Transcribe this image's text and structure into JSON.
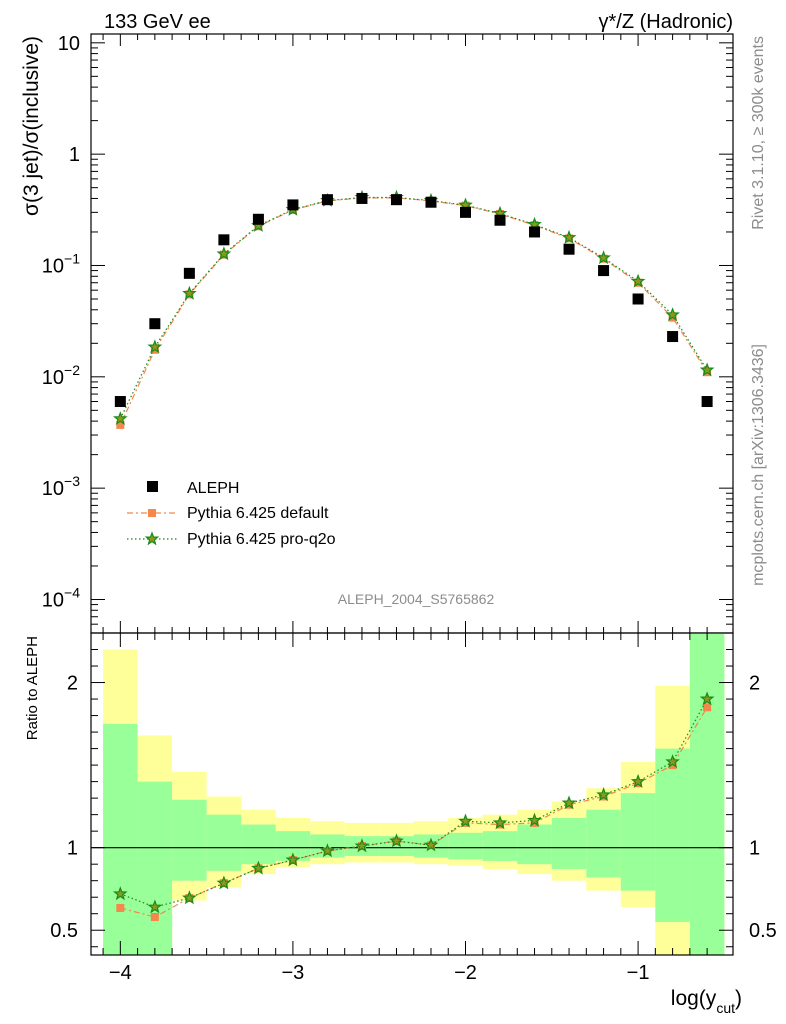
{
  "header": {
    "left": "133 GeV ee",
    "right": "γ*/Z (Hadronic)"
  },
  "side_labels": {
    "top": "Rivet 3.1.10, ≥ 300k events",
    "bottom": "mcplots.cern.ch [arXiv:1306.3436]"
  },
  "watermark": "ALEPH_2004_S5765862",
  "colors": {
    "data": "#000000",
    "pythia_default": "#f4874b",
    "pythia_proq2o": "#1a8a1a",
    "band_inner": "#99ff99",
    "band_outer": "#ffff99"
  },
  "chart_data": [
    {
      "type": "scatter",
      "ylabel": "σ(3 jet)/σ(inclusive)",
      "yscale": "log",
      "ylim": [
        5e-05,
        12
      ],
      "xlim": [
        -4.17,
        -0.45
      ],
      "y_ticks": [
        {
          "value": 10,
          "label": "10"
        },
        {
          "value": 1,
          "label": "1"
        },
        {
          "value": 0.1,
          "label": "10^-1",
          "base": "10",
          "exp": "−1"
        },
        {
          "value": 0.01,
          "label": "10^-2",
          "base": "10",
          "exp": "−2"
        },
        {
          "value": 0.001,
          "label": "10^-3",
          "base": "10",
          "exp": "−3"
        },
        {
          "value": 0.0001,
          "label": "10^-4",
          "base": "10",
          "exp": "−4"
        }
      ],
      "x": [
        -4.0,
        -3.8,
        -3.6,
        -3.4,
        -3.2,
        -3.0,
        -2.8,
        -2.6,
        -2.4,
        -2.2,
        -2.0,
        -1.8,
        -1.6,
        -1.4,
        -1.2,
        -1.0,
        -0.8,
        -0.6
      ],
      "series": [
        {
          "name": "ALEPH",
          "values": [
            0.006,
            0.03,
            0.085,
            0.17,
            0.26,
            0.35,
            0.39,
            0.4,
            0.39,
            0.37,
            0.3,
            0.255,
            0.2,
            0.14,
            0.09,
            0.05,
            0.023,
            0.006
          ]
        },
        {
          "name": "Pythia 6.425 default",
          "values": [
            0.0037,
            0.0175,
            0.055,
            0.125,
            0.225,
            0.315,
            0.38,
            0.405,
            0.405,
            0.38,
            0.345,
            0.29,
            0.23,
            0.175,
            0.115,
            0.07,
            0.034,
            0.011
          ]
        },
        {
          "name": "Pythia 6.425 pro-q2o",
          "values": [
            0.0042,
            0.0185,
            0.056,
            0.127,
            0.228,
            0.318,
            0.383,
            0.408,
            0.408,
            0.383,
            0.348,
            0.293,
            0.233,
            0.178,
            0.117,
            0.072,
            0.036,
            0.0115
          ]
        }
      ],
      "legend_position": "lower-left"
    },
    {
      "type": "line",
      "ylabel": "Ratio to ALEPH",
      "xlabel": "log(y_cut)",
      "xlabel_main": "log(y",
      "xlabel_sub": "cut",
      "xlabel_close": ")",
      "ylim": [
        0.35,
        2.3
      ],
      "xlim": [
        -4.17,
        -0.45
      ],
      "y_ticks": [
        {
          "value": 0.5,
          "label": "0.5"
        },
        {
          "value": 1,
          "label": "1"
        },
        {
          "value": 2,
          "label": "2"
        }
      ],
      "x_ticks": [
        {
          "value": -4,
          "label": "−4"
        },
        {
          "value": -3,
          "label": "−3"
        },
        {
          "value": -2,
          "label": "−2"
        },
        {
          "value": -1,
          "label": "−1"
        }
      ],
      "band_bins": [
        -4.1,
        -3.9,
        -3.7,
        -3.5,
        -3.3,
        -3.1,
        -2.9,
        -2.7,
        -2.5,
        -2.3,
        -2.1,
        -1.9,
        -1.7,
        -1.5,
        -1.3,
        -1.1,
        -0.9,
        -0.7,
        -0.5
      ],
      "band_outer": [
        [
          0.35,
          2.2
        ],
        [
          0.35,
          1.68
        ],
        [
          0.68,
          1.46
        ],
        [
          0.76,
          1.31
        ],
        [
          0.84,
          1.23
        ],
        [
          0.88,
          1.18
        ],
        [
          0.9,
          1.16
        ],
        [
          0.91,
          1.15
        ],
        [
          0.91,
          1.15
        ],
        [
          0.9,
          1.16
        ],
        [
          0.89,
          1.18
        ],
        [
          0.87,
          1.2
        ],
        [
          0.84,
          1.23
        ],
        [
          0.8,
          1.28
        ],
        [
          0.74,
          1.36
        ],
        [
          0.64,
          1.52
        ],
        [
          0.35,
          1.98
        ],
        [
          0.35,
          2.3
        ]
      ],
      "band_inner": [
        [
          0.35,
          1.75
        ],
        [
          0.35,
          1.4
        ],
        [
          0.8,
          1.29
        ],
        [
          0.86,
          1.2
        ],
        [
          0.9,
          1.14
        ],
        [
          0.92,
          1.1
        ],
        [
          0.94,
          1.08
        ],
        [
          0.95,
          1.07
        ],
        [
          0.95,
          1.07
        ],
        [
          0.94,
          1.08
        ],
        [
          0.93,
          1.09
        ],
        [
          0.92,
          1.1
        ],
        [
          0.9,
          1.14
        ],
        [
          0.87,
          1.18
        ],
        [
          0.82,
          1.23
        ],
        [
          0.74,
          1.33
        ],
        [
          0.55,
          1.6
        ],
        [
          0.35,
          2.3
        ]
      ],
      "series": [
        {
          "name": "Pythia 6.425 default",
          "values": [
            0.635,
            0.58,
            0.695,
            0.785,
            0.875,
            0.925,
            0.98,
            1.01,
            1.04,
            1.015,
            1.15,
            1.14,
            1.15,
            1.26,
            1.31,
            1.39,
            1.5,
            1.85
          ]
        },
        {
          "name": "Pythia 6.425 pro-q2o",
          "values": [
            0.72,
            0.64,
            0.695,
            0.785,
            0.875,
            0.925,
            0.98,
            1.01,
            1.04,
            1.015,
            1.16,
            1.15,
            1.165,
            1.27,
            1.32,
            1.4,
            1.52,
            1.9
          ]
        }
      ]
    }
  ]
}
